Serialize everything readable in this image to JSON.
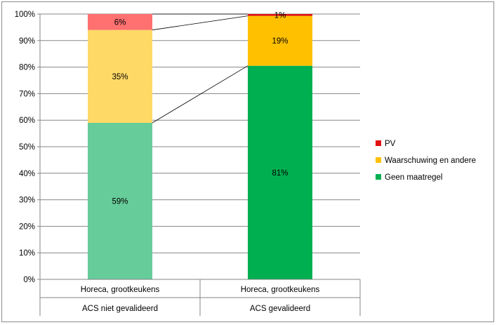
{
  "chart_data": {
    "type": "bar",
    "stacked": "percent",
    "categories": [
      [
        "Horeca, grootkeukens",
        "ACS niet gevalideerd"
      ],
      [
        "Horeca, grootkeukens",
        "ACS gevalideerd"
      ]
    ],
    "series": [
      {
        "name": "Geen maatregel",
        "values": [
          59,
          81
        ],
        "colors": [
          "#66cc99",
          "#00b050"
        ]
      },
      {
        "name": "Waarschuwing en andere",
        "values": [
          35,
          19
        ],
        "colors": [
          "#ffd966",
          "#ffc000"
        ]
      },
      {
        "name": "PV",
        "values": [
          6,
          1
        ],
        "colors": [
          "#ff7070",
          "#e01010"
        ]
      }
    ],
    "series_stack_values": [
      [
        59,
        35,
        6
      ],
      [
        80.5,
        18.8,
        0.7
      ]
    ],
    "data_labels": [
      [
        "59%",
        "35%",
        "6%"
      ],
      [
        "81%",
        "19%",
        "1%"
      ]
    ],
    "ylim": [
      0,
      100
    ],
    "yticks": [
      "0%",
      "10%",
      "20%",
      "30%",
      "40%",
      "50%",
      "60%",
      "70%",
      "80%",
      "90%",
      "100%"
    ],
    "grid": true,
    "series_lines": true,
    "legend": {
      "placement": "right",
      "entries": [
        {
          "name": "PV",
          "color": "#e01010"
        },
        {
          "name": "Waarschuwing en andere",
          "color": "#ffc000"
        },
        {
          "name": "Geen maatregel",
          "color": "#00b050"
        }
      ]
    }
  }
}
